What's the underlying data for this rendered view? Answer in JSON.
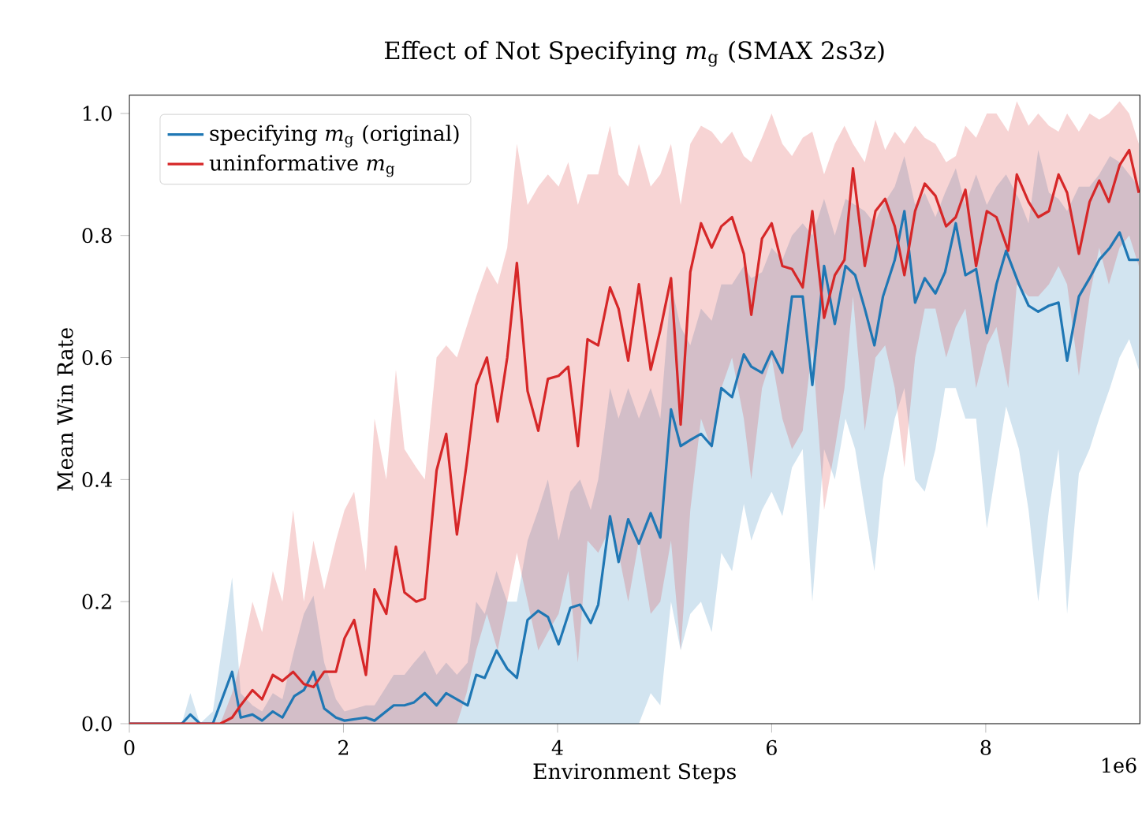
{
  "chart_data": {
    "type": "line",
    "title": "Effect of Not Specifying *m*$_{g}$ (SMAX 2s3z)",
    "xlabel": "Environment Steps",
    "ylabel": "Mean Win Rate",
    "annotations": [
      "1e6"
    ],
    "xlim": [
      0,
      9.44
    ],
    "ylim": [
      0,
      1.03
    ],
    "xticks": [
      0,
      2,
      4,
      6,
      8
    ],
    "yticks": [
      {
        "value": 0,
        "label": "0.0"
      },
      0.2,
      0.4,
      0.6,
      0.8,
      {
        "value": 1,
        "label": "1.0"
      }
    ],
    "legend": "top left",
    "series": [
      {
        "name": "specifying *m*$_{g}$ (original)",
        "color": "#1f77b4",
        "x": [
          0,
          0.49,
          0.57,
          0.66,
          0.78,
          0.96,
          1.04,
          1.15,
          1.24,
          1.34,
          1.43,
          1.54,
          1.63,
          1.72,
          1.82,
          1.93,
          2.01,
          2.21,
          2.29,
          2.47,
          2.57,
          2.66,
          2.76,
          2.87,
          2.96,
          3.06,
          3.16,
          3.24,
          3.32,
          3.43,
          3.53,
          3.62,
          3.72,
          3.82,
          3.91,
          4.01,
          4.12,
          4.21,
          4.31,
          4.38,
          4.49,
          4.57,
          4.66,
          4.76,
          4.87,
          4.96,
          5.06,
          5.15,
          5.24,
          5.34,
          5.44,
          5.53,
          5.63,
          5.74,
          5.81,
          5.91,
          6.0,
          6.1,
          6.19,
          6.29,
          6.38,
          6.49,
          6.59,
          6.69,
          6.78,
          6.87,
          6.96,
          7.04,
          7.15,
          7.24,
          7.34,
          7.43,
          7.53,
          7.62,
          7.72,
          7.81,
          7.91,
          8.01,
          8.1,
          8.19,
          8.31,
          8.4,
          8.49,
          8.59,
          8.68,
          8.76,
          8.87,
          8.97,
          9.06,
          9.16,
          9.25,
          9.34,
          9.43
        ],
        "values": [
          0,
          0,
          0.015,
          0,
          0,
          0.085,
          0.01,
          0.015,
          0.005,
          0.02,
          0.01,
          0.045,
          0.055,
          0.085,
          0.025,
          0.01,
          0.005,
          0.01,
          0.005,
          0.03,
          0.03,
          0.035,
          0.05,
          0.03,
          0.05,
          0.04,
          0.03,
          0.08,
          0.075,
          0.12,
          0.09,
          0.075,
          0.17,
          0.185,
          0.175,
          0.13,
          0.19,
          0.195,
          0.165,
          0.195,
          0.34,
          0.265,
          0.335,
          0.295,
          0.345,
          0.305,
          0.515,
          0.455,
          0.465,
          0.475,
          0.455,
          0.55,
          0.535,
          0.605,
          0.585,
          0.575,
          0.61,
          0.575,
          0.7,
          0.7,
          0.555,
          0.75,
          0.655,
          0.75,
          0.735,
          0.68,
          0.62,
          0.7,
          0.76,
          0.84,
          0.69,
          0.73,
          0.705,
          0.74,
          0.82,
          0.735,
          0.745,
          0.64,
          0.72,
          0.775,
          0.72,
          0.685,
          0.675,
          0.685,
          0.69,
          0.595,
          0.7,
          0.73,
          0.76,
          0.78,
          0.805,
          0.76,
          0.76
        ],
        "lower": [
          0,
          0,
          0,
          0,
          0,
          0,
          0,
          0,
          0,
          0,
          0,
          0,
          0,
          0,
          0,
          0,
          0,
          0,
          0,
          0,
          0,
          0,
          0,
          0,
          0,
          0,
          0,
          0,
          0,
          0,
          0,
          0,
          0,
          0,
          0,
          0,
          0,
          0,
          0,
          0,
          0,
          0,
          0,
          0,
          0.05,
          0.03,
          0.2,
          0.12,
          0.18,
          0.2,
          0.15,
          0.28,
          0.25,
          0.36,
          0.3,
          0.35,
          0.38,
          0.34,
          0.42,
          0.45,
          0.2,
          0.45,
          0.4,
          0.5,
          0.45,
          0.35,
          0.25,
          0.4,
          0.5,
          0.55,
          0.4,
          0.38,
          0.45,
          0.55,
          0.55,
          0.5,
          0.5,
          0.32,
          0.42,
          0.52,
          0.45,
          0.35,
          0.2,
          0.35,
          0.45,
          0.18,
          0.41,
          0.45,
          0.5,
          0.55,
          0.6,
          0.63,
          0.58
        ],
        "upper": [
          0,
          0,
          0.05,
          0,
          0.02,
          0.24,
          0.05,
          0.03,
          0.02,
          0.05,
          0.04,
          0.12,
          0.18,
          0.21,
          0.1,
          0.04,
          0.02,
          0.03,
          0.03,
          0.08,
          0.08,
          0.1,
          0.12,
          0.08,
          0.1,
          0.08,
          0.1,
          0.2,
          0.18,
          0.25,
          0.2,
          0.2,
          0.3,
          0.35,
          0.4,
          0.3,
          0.38,
          0.4,
          0.35,
          0.4,
          0.55,
          0.5,
          0.55,
          0.5,
          0.55,
          0.5,
          0.72,
          0.65,
          0.62,
          0.68,
          0.66,
          0.72,
          0.72,
          0.75,
          0.73,
          0.74,
          0.78,
          0.76,
          0.8,
          0.82,
          0.8,
          0.86,
          0.8,
          0.86,
          0.85,
          0.84,
          0.82,
          0.85,
          0.88,
          0.93,
          0.85,
          0.87,
          0.83,
          0.87,
          0.91,
          0.85,
          0.9,
          0.85,
          0.88,
          0.9,
          0.86,
          0.82,
          0.94,
          0.87,
          0.86,
          0.84,
          0.88,
          0.88,
          0.9,
          0.93,
          0.92,
          0.9,
          0.88
        ]
      },
      {
        "name": "uninformative *m*$_{g}$",
        "color": "#d62728",
        "x": [
          0,
          0.85,
          0.96,
          1.04,
          1.15,
          1.24,
          1.34,
          1.43,
          1.53,
          1.63,
          1.72,
          1.82,
          1.93,
          2.01,
          2.1,
          2.21,
          2.29,
          2.4,
          2.49,
          2.57,
          2.68,
          2.76,
          2.87,
          2.96,
          3.06,
          3.15,
          3.24,
          3.34,
          3.44,
          3.53,
          3.62,
          3.72,
          3.82,
          3.91,
          4.01,
          4.1,
          4.19,
          4.28,
          4.38,
          4.49,
          4.57,
          4.66,
          4.76,
          4.87,
          4.96,
          5.06,
          5.15,
          5.24,
          5.34,
          5.44,
          5.53,
          5.63,
          5.74,
          5.81,
          5.91,
          6.0,
          6.1,
          6.19,
          6.29,
          6.38,
          6.49,
          6.59,
          6.68,
          6.76,
          6.87,
          6.97,
          7.06,
          7.15,
          7.24,
          7.34,
          7.43,
          7.53,
          7.63,
          7.72,
          7.81,
          7.91,
          8.01,
          8.1,
          8.21,
          8.29,
          8.4,
          8.49,
          8.59,
          8.68,
          8.76,
          8.87,
          8.97,
          9.06,
          9.15,
          9.25,
          9.34,
          9.43
        ],
        "values": [
          0,
          0,
          0.01,
          0.03,
          0.055,
          0.04,
          0.08,
          0.07,
          0.085,
          0.065,
          0.06,
          0.085,
          0.085,
          0.14,
          0.17,
          0.08,
          0.22,
          0.18,
          0.29,
          0.215,
          0.2,
          0.205,
          0.415,
          0.475,
          0.31,
          0.425,
          0.555,
          0.6,
          0.495,
          0.6,
          0.755,
          0.545,
          0.48,
          0.565,
          0.57,
          0.585,
          0.455,
          0.63,
          0.62,
          0.715,
          0.68,
          0.595,
          0.72,
          0.58,
          0.645,
          0.73,
          0.49,
          0.74,
          0.82,
          0.78,
          0.815,
          0.83,
          0.77,
          0.67,
          0.795,
          0.82,
          0.75,
          0.745,
          0.715,
          0.84,
          0.665,
          0.735,
          0.76,
          0.91,
          0.75,
          0.84,
          0.86,
          0.815,
          0.735,
          0.84,
          0.885,
          0.865,
          0.815,
          0.83,
          0.875,
          0.75,
          0.84,
          0.83,
          0.775,
          0.9,
          0.855,
          0.83,
          0.84,
          0.9,
          0.87,
          0.77,
          0.855,
          0.89,
          0.855,
          0.915,
          0.94,
          0.87
        ],
        "lower": [
          0,
          0,
          0,
          0,
          0,
          0,
          0,
          0,
          0,
          0,
          0,
          0,
          0,
          0,
          0,
          0,
          0,
          0,
          0,
          0,
          0,
          0,
          0,
          0,
          0,
          0.05,
          0.12,
          0.18,
          0.12,
          0.2,
          0.28,
          0.2,
          0.12,
          0.15,
          0.18,
          0.25,
          0.1,
          0.3,
          0.28,
          0.32,
          0.28,
          0.2,
          0.3,
          0.18,
          0.2,
          0.3,
          0.12,
          0.35,
          0.5,
          0.45,
          0.55,
          0.6,
          0.5,
          0.4,
          0.55,
          0.6,
          0.5,
          0.45,
          0.48,
          0.62,
          0.35,
          0.45,
          0.55,
          0.7,
          0.48,
          0.6,
          0.62,
          0.55,
          0.42,
          0.6,
          0.68,
          0.68,
          0.6,
          0.65,
          0.68,
          0.55,
          0.62,
          0.65,
          0.55,
          0.72,
          0.7,
          0.7,
          0.72,
          0.75,
          0.72,
          0.57,
          0.7,
          0.78,
          0.72,
          0.78,
          0.8,
          0.75
        ],
        "upper": [
          0,
          0,
          0.05,
          0.1,
          0.2,
          0.15,
          0.25,
          0.2,
          0.35,
          0.2,
          0.3,
          0.22,
          0.3,
          0.35,
          0.38,
          0.25,
          0.5,
          0.4,
          0.58,
          0.45,
          0.42,
          0.4,
          0.6,
          0.62,
          0.6,
          0.65,
          0.7,
          0.75,
          0.72,
          0.78,
          0.95,
          0.85,
          0.88,
          0.9,
          0.88,
          0.92,
          0.85,
          0.9,
          0.9,
          0.98,
          0.9,
          0.88,
          0.95,
          0.88,
          0.9,
          0.95,
          0.85,
          0.95,
          0.98,
          0.97,
          0.95,
          0.97,
          0.93,
          0.92,
          0.96,
          1.0,
          0.95,
          0.93,
          0.96,
          0.97,
          0.9,
          0.95,
          0.98,
          0.95,
          0.92,
          0.99,
          0.94,
          0.97,
          0.95,
          0.98,
          0.96,
          0.95,
          0.92,
          0.93,
          0.98,
          0.96,
          1.0,
          1.0,
          0.97,
          1.02,
          0.98,
          1.0,
          0.98,
          0.97,
          1.0,
          0.97,
          1.0,
          0.99,
          1.0,
          1.02,
          1.0,
          0.95
        ]
      }
    ]
  }
}
